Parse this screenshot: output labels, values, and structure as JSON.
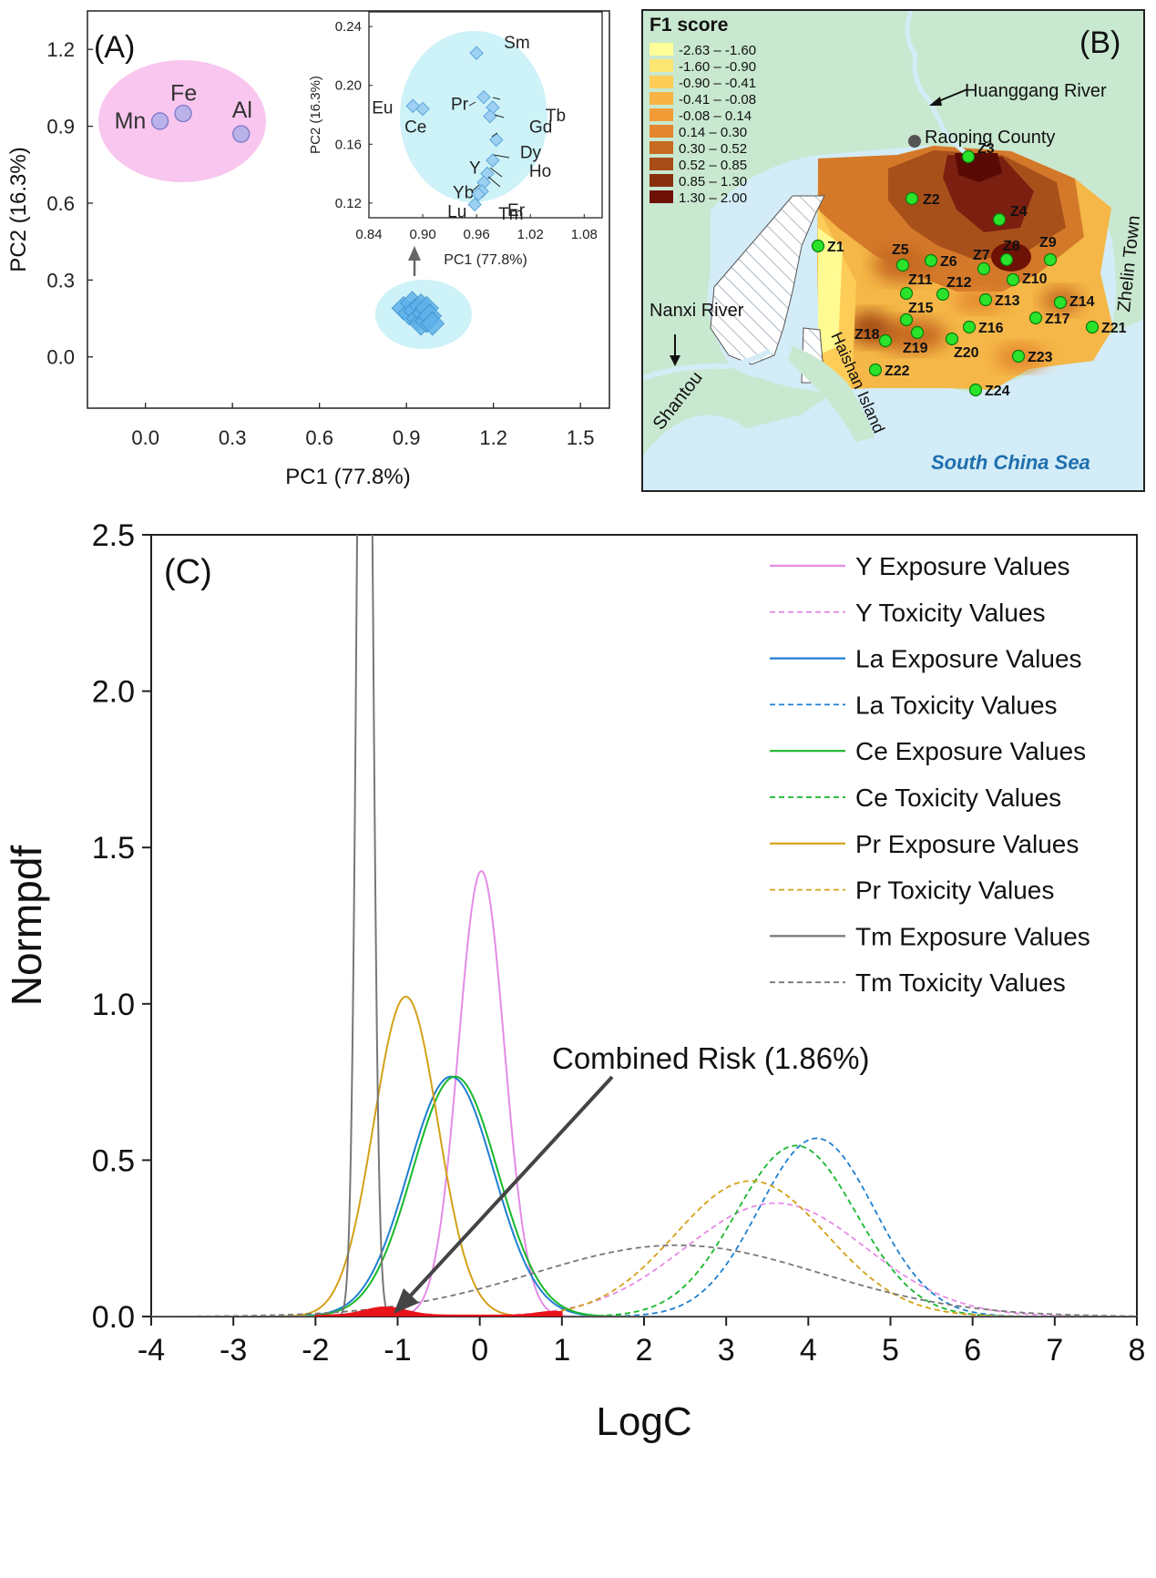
{
  "chart_data": [
    {
      "id": "A",
      "type": "scatter",
      "panel_label": "(A)",
      "xlabel": "PC1 (77.8%)",
      "ylabel": "PC2 (16.3%)",
      "xlim": [
        -0.2,
        1.6
      ],
      "ylim": [
        -0.2,
        1.35
      ],
      "xticks": [
        0.0,
        0.3,
        0.6,
        0.9,
        1.2,
        1.5
      ],
      "yticks": [
        0.0,
        0.3,
        0.6,
        0.9,
        1.2
      ],
      "xtick_labels": [
        "0.0",
        "0.3",
        "0.6",
        "0.9",
        "1.2",
        "1.5"
      ],
      "ytick_labels": [
        "0.0",
        "0.3",
        "0.6",
        "0.9",
        "1.2"
      ],
      "points": [
        {
          "label": "Mn",
          "x": 0.05,
          "y": 0.92
        },
        {
          "label": "Fe",
          "x": 0.13,
          "y": 0.95
        },
        {
          "label": "Al",
          "x": 0.33,
          "y": 0.87
        }
      ],
      "cluster": [
        {
          "x": 0.89,
          "y": 0.19
        },
        {
          "x": 0.91,
          "y": 0.17
        },
        {
          "x": 0.92,
          "y": 0.21
        },
        {
          "x": 0.93,
          "y": 0.18
        },
        {
          "x": 0.94,
          "y": 0.15
        },
        {
          "x": 0.95,
          "y": 0.2
        },
        {
          "x": 0.95,
          "y": 0.13
        },
        {
          "x": 0.96,
          "y": 0.17
        },
        {
          "x": 0.97,
          "y": 0.14
        },
        {
          "x": 0.97,
          "y": 0.19
        },
        {
          "x": 0.98,
          "y": 0.16
        },
        {
          "x": 0.99,
          "y": 0.13
        }
      ],
      "inset": {
        "xlabel": "PC1 (77.8%)",
        "ylabel": "PC2 (16.3%)",
        "xlim": [
          0.84,
          1.1
        ],
        "ylim": [
          0.11,
          0.25
        ],
        "xticks": [
          0.84,
          0.9,
          0.96,
          1.02,
          1.08
        ],
        "yticks": [
          0.12,
          0.16,
          0.2,
          0.24
        ],
        "xtick_labels": [
          "0.84",
          "0.90",
          "0.96",
          "1.02",
          "1.08"
        ],
        "ytick_labels": [
          "0.12",
          "0.16",
          "0.20",
          "0.24"
        ],
        "points": [
          {
            "label": "Eu",
            "x": 0.889,
            "y": 0.186
          },
          {
            "label": "Ce",
            "x": 0.9,
            "y": 0.184
          },
          {
            "label": "Pr",
            "x": 0.968,
            "y": 0.192
          },
          {
            "label": "Sm",
            "x": 0.96,
            "y": 0.222
          },
          {
            "label": "Tb",
            "x": 0.978,
            "y": 0.185
          },
          {
            "label": "Gd",
            "x": 0.975,
            "y": 0.179
          },
          {
            "label": "Dy",
            "x": 0.982,
            "y": 0.163
          },
          {
            "label": "Ho",
            "x": 0.978,
            "y": 0.149
          },
          {
            "label": "Y",
            "x": 0.972,
            "y": 0.14
          },
          {
            "label": "Yb",
            "x": 0.968,
            "y": 0.134
          },
          {
            "label": "Er",
            "x": 0.966,
            "y": 0.128
          },
          {
            "label": "Tm",
            "x": 0.962,
            "y": 0.126
          },
          {
            "label": "Lu",
            "x": 0.958,
            "y": 0.119
          }
        ]
      }
    },
    {
      "id": "B",
      "type": "heatmap",
      "panel_label": "(B)",
      "legend_title": "F1 score",
      "legend": [
        {
          "label": "-2.63 – -1.60",
          "color": "#ffff99"
        },
        {
          "label": "-1.60 – -0.90",
          "color": "#fee672"
        },
        {
          "label": "-0.90 – -0.41",
          "color": "#fdcd57"
        },
        {
          "label": "-0.41 – -0.08",
          "color": "#f7b444"
        },
        {
          "label": "-0.08 – 0.14",
          "color": "#f29c37"
        },
        {
          "label": "0.14 – 0.30",
          "color": "#e4862d"
        },
        {
          "label": "0.30 – 0.52",
          "color": "#c76a22"
        },
        {
          "label": "0.52 – 0.85",
          "color": "#a84d18"
        },
        {
          "label": "0.85 – 1.30",
          "color": "#88300e"
        },
        {
          "label": "1.30 – 2.00",
          "color": "#6e1205"
        }
      ],
      "place_labels": {
        "river_north": "Huanggang River",
        "county": "Raoping County",
        "river_west": "Nanxi River",
        "city": "Shantou",
        "island": "Haishan Island",
        "town": "Zhelin Town",
        "sea": "South China Sea"
      },
      "sites": [
        "Z1",
        "Z2",
        "Z3",
        "Z4",
        "Z5",
        "Z6",
        "Z7",
        "Z8",
        "Z9",
        "Z10",
        "Z11",
        "Z12",
        "Z13",
        "Z14",
        "Z15",
        "Z16",
        "Z17",
        "Z18",
        "Z19",
        "Z20",
        "Z21",
        "Z22",
        "Z23",
        "Z24"
      ]
    },
    {
      "id": "C",
      "type": "line",
      "panel_label": "(C)",
      "xlabel": "LogC",
      "ylabel": "Normpdf",
      "xlim": [
        -4,
        8
      ],
      "ylim": [
        0,
        2.5
      ],
      "xticks": [
        -4,
        -3,
        -2,
        -1,
        0,
        1,
        2,
        3,
        4,
        5,
        6,
        7,
        8
      ],
      "yticks": [
        0.0,
        0.5,
        1.0,
        1.5,
        2.0,
        2.5
      ],
      "xtick_labels": [
        "-4",
        "-3",
        "-2",
        "-1",
        "0",
        "1",
        "2",
        "3",
        "4",
        "5",
        "6",
        "7",
        "8"
      ],
      "ytick_labels": [
        "0.0",
        "0.5",
        "1.0",
        "1.5",
        "2.0",
        "2.5"
      ],
      "annotation": "Combined Risk (1.86%)",
      "legend_position": "top-right",
      "series": [
        {
          "name": "Y Exposure Values",
          "color": "#e58be6",
          "style": "solid",
          "mean": 0.02,
          "sd": 0.28
        },
        {
          "name": "Y Toxicity Values",
          "color": "#e58be6",
          "style": "dashed",
          "mean": 3.6,
          "sd": 1.1
        },
        {
          "name": "La Exposure Values",
          "color": "#1f7fd1",
          "style": "solid",
          "mean": -0.35,
          "sd": 0.52
        },
        {
          "name": "La Toxicity Values",
          "color": "#1f7fd1",
          "style": "dashed",
          "mean": 4.1,
          "sd": 0.7
        },
        {
          "name": "Ce Exposure Values",
          "color": "#17b82a",
          "style": "solid",
          "mean": -0.3,
          "sd": 0.52
        },
        {
          "name": "Ce Toxicity Values",
          "color": "#17b82a",
          "style": "dashed",
          "mean": 3.85,
          "sd": 0.73
        },
        {
          "name": "Pr Exposure Values",
          "color": "#d4a017",
          "style": "solid",
          "mean": -0.9,
          "sd": 0.39
        },
        {
          "name": "Pr Toxicity Values",
          "color": "#d4a017",
          "style": "dashed",
          "mean": 3.3,
          "sd": 0.92
        },
        {
          "name": "Tm Exposure Values",
          "color": "#777777",
          "style": "solid",
          "mean": -1.4,
          "sd": 0.08
        },
        {
          "name": "Tm Toxicity Values",
          "color": "#777777",
          "style": "dashed",
          "mean": 2.4,
          "sd": 1.75
        }
      ]
    }
  ]
}
